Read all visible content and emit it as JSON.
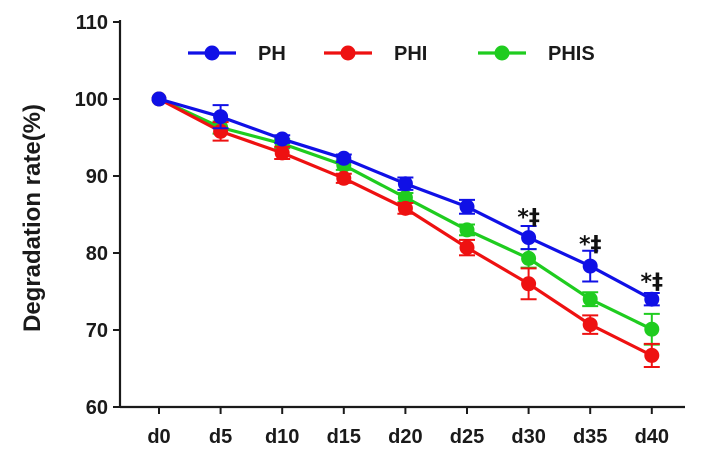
{
  "chart_data": {
    "type": "line",
    "title": "",
    "xlabel": "",
    "ylabel": "Degradation rate(%)",
    "ylim": [
      60,
      110
    ],
    "yticks": [
      60,
      70,
      80,
      90,
      100,
      110
    ],
    "categories": [
      "d0",
      "d5",
      "d10",
      "d15",
      "d20",
      "d25",
      "d30",
      "d35",
      "d40"
    ],
    "grid": false,
    "legend": "top",
    "series": [
      {
        "name": "PH",
        "color": "#1010e6",
        "values": [
          100,
          97.7,
          94.8,
          92.3,
          89.0,
          86.0,
          82.0,
          78.3,
          74.0
        ],
        "errors": [
          0,
          1.5,
          0.5,
          0.5,
          0.8,
          0.9,
          1.5,
          2.0,
          0.8
        ]
      },
      {
        "name": "PHI",
        "color": "#ee1111",
        "values": [
          100,
          95.8,
          93.0,
          89.7,
          85.8,
          80.7,
          76.0,
          70.7,
          66.7
        ],
        "errors": [
          0,
          1.2,
          0.8,
          0.6,
          0.7,
          1.0,
          2.0,
          1.2,
          1.5
        ]
      },
      {
        "name": "PHIS",
        "color": "#1fcc1f",
        "values": [
          100,
          96.3,
          94.2,
          91.4,
          87.2,
          83.0,
          79.3,
          74.0,
          70.1
        ],
        "errors": [
          0,
          0.8,
          0.6,
          0.6,
          0.6,
          0.7,
          1.2,
          0.9,
          2.0
        ]
      }
    ],
    "annotations": [
      {
        "category": "d30",
        "y": 83.7,
        "text": "*‡"
      },
      {
        "category": "d35",
        "y": 80.2,
        "text": "*‡"
      },
      {
        "category": "d40",
        "y": 75.3,
        "text": "*‡"
      }
    ]
  }
}
